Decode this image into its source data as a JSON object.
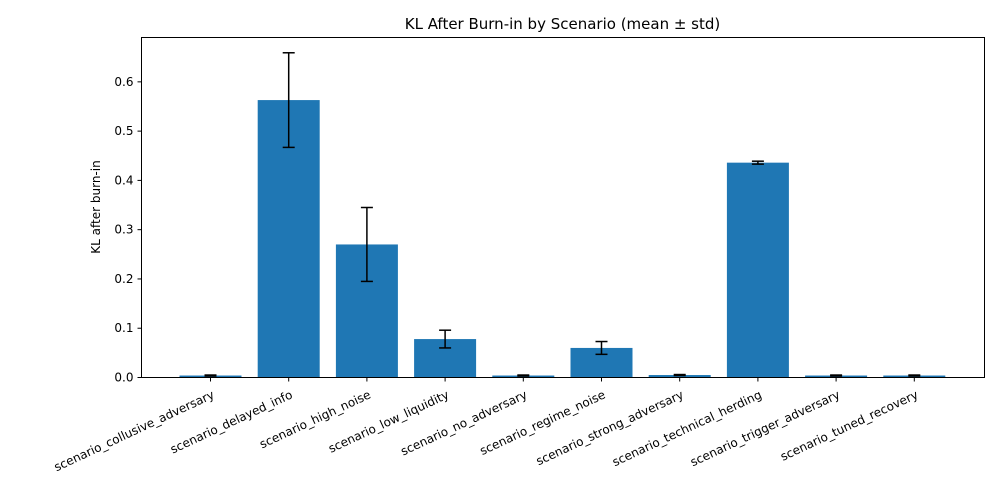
{
  "chart_data": {
    "type": "bar",
    "title": "KL After Burn-in by Scenario (mean ± std)",
    "xlabel": "",
    "ylabel": "KL after burn-in",
    "ylim": [
      0,
      0.69
    ],
    "yticks": [
      0.0,
      0.1,
      0.2,
      0.3,
      0.4,
      0.5,
      0.6
    ],
    "ytick_labels": [
      "0.0",
      "0.1",
      "0.2",
      "0.3",
      "0.4",
      "0.5",
      "0.6"
    ],
    "categories": [
      "scenario_collusive_adversary",
      "scenario_delayed_info",
      "scenario_high_noise",
      "scenario_low_liquidity",
      "scenario_no_adversary",
      "scenario_regime_noise",
      "scenario_strong_adversary",
      "scenario_technical_herding",
      "scenario_trigger_adversary",
      "scenario_tuned_recovery"
    ],
    "values": [
      0.004,
      0.563,
      0.27,
      0.078,
      0.004,
      0.06,
      0.005,
      0.436,
      0.004,
      0.004
    ],
    "errors": [
      0.001,
      0.096,
      0.075,
      0.018,
      0.001,
      0.013,
      0.001,
      0.003,
      0.001,
      0.001
    ],
    "bar_color": "#1f77b4",
    "error_color": "#000000",
    "grid": false,
    "legend": "none"
  }
}
